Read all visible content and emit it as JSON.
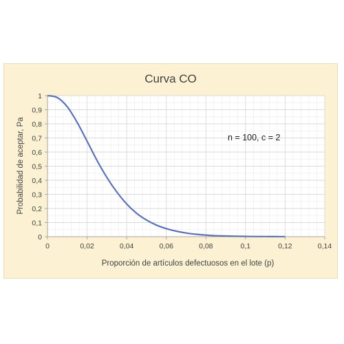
{
  "chart_data": {
    "type": "line",
    "title": "Curva CO",
    "xlabel": "Proporción de artículos defectuosos en el lote (p)",
    "ylabel": "Probabilidad de aceptar, Pa",
    "annotation": "n = 100, c = 2",
    "xlim": [
      0,
      0.14
    ],
    "ylim": [
      0,
      1
    ],
    "xticks": [
      "0",
      "0,02",
      "0,04",
      "0,06",
      "0,08",
      "0,1",
      "0,12",
      "0,14"
    ],
    "yticks": [
      "0",
      "0,1",
      "0,2",
      "0,3",
      "0,4",
      "0,5",
      "0,6",
      "0,7",
      "0,8",
      "0,9",
      "1"
    ],
    "grid": true,
    "colors": {
      "line": "#5b73b5",
      "panel": "#fcf2d3",
      "plot_area": "#ffffff",
      "major_grid": "#d9d9d9",
      "minor_grid": "#eeeeee"
    },
    "series": [
      {
        "x": [
          0,
          0.005,
          0.01,
          0.015,
          0.02,
          0.025,
          0.03,
          0.035,
          0.04,
          0.045,
          0.05,
          0.055,
          0.06,
          0.065,
          0.07,
          0.075,
          0.08,
          0.085,
          0.09,
          0.095,
          0.1,
          0.105,
          0.11,
          0.115,
          0.12
        ],
        "values": [
          1.0,
          0.986,
          0.921,
          0.81,
          0.677,
          0.541,
          0.42,
          0.317,
          0.232,
          0.166,
          0.118,
          0.082,
          0.057,
          0.039,
          0.026,
          0.017,
          0.011,
          0.007,
          0.005,
          0.003,
          0.002,
          0.001,
          0.001,
          0.0005,
          0.0003
        ]
      }
    ]
  }
}
